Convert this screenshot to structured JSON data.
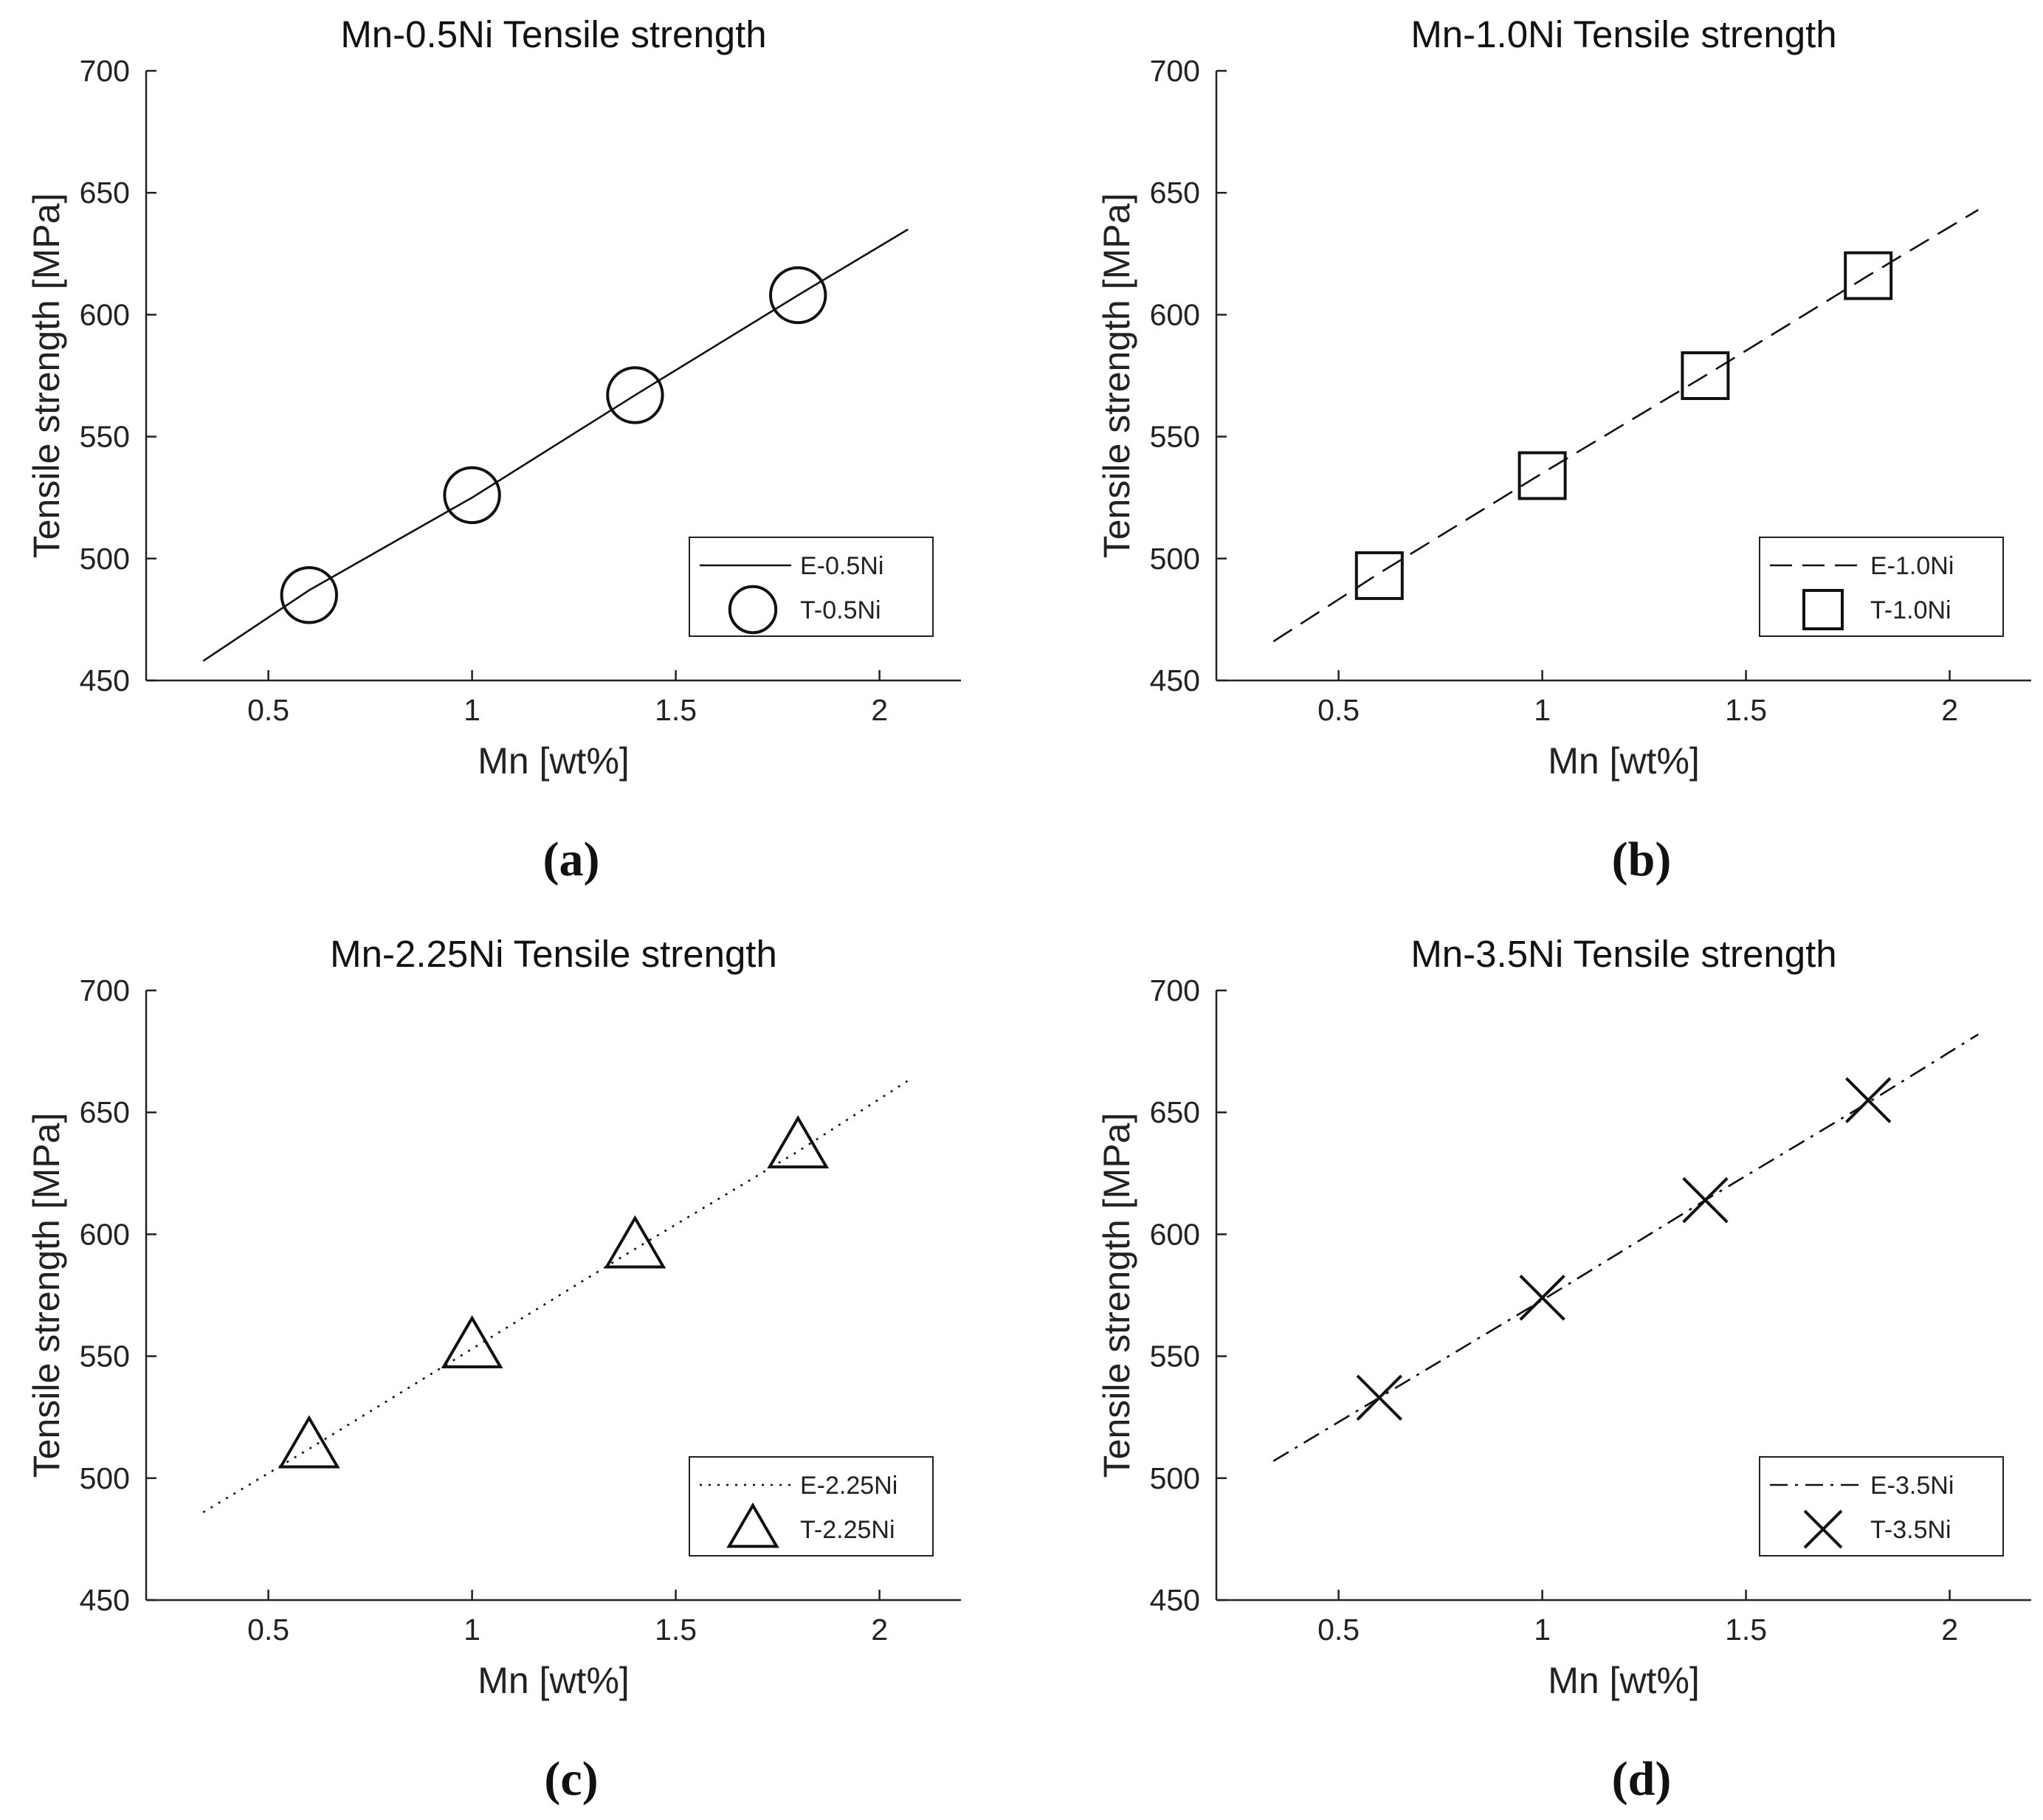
{
  "chart_data": [
    {
      "type": "line",
      "panel_label": "(a)",
      "title": "Mn-0.5Ni Tensile strength",
      "xlabel": "Mn [wt%]",
      "ylabel": "Tensile strength [MPa]",
      "xlim": [
        0.2,
        2.2
      ],
      "ylim": [
        450,
        700
      ],
      "xticks": [
        "0.5",
        "1",
        "1.5",
        "2"
      ],
      "yticks": [
        "450",
        "500",
        "550",
        "600",
        "650",
        "700"
      ],
      "legend_position": "bottom-right",
      "series": [
        {
          "name": "E-0.5Ni",
          "kind": "line",
          "linestyle": "solid",
          "x": [
            0.34,
            0.6,
            1.0,
            1.4,
            1.8,
            2.07
          ],
          "y": [
            458,
            487,
            525,
            567,
            608,
            635
          ]
        },
        {
          "name": "T-0.5Ni",
          "kind": "marker",
          "marker": "circle",
          "x": [
            0.6,
            1.0,
            1.4,
            1.8
          ],
          "y": [
            485,
            526,
            567,
            608
          ]
        }
      ]
    },
    {
      "type": "line",
      "panel_label": "(b)",
      "title": "Mn-1.0Ni Tensile strength",
      "xlabel": "Mn [wt%]",
      "ylabel": "Tensile strength [MPa]",
      "xlim": [
        0.2,
        2.2
      ],
      "ylim": [
        450,
        700
      ],
      "xticks": [
        "0.5",
        "1",
        "1.5",
        "2"
      ],
      "yticks": [
        "450",
        "500",
        "550",
        "600",
        "650",
        "700"
      ],
      "legend_position": "bottom-right",
      "series": [
        {
          "name": "E-1.0Ni",
          "kind": "line",
          "linestyle": "dashed",
          "x": [
            0.34,
            0.6,
            1.0,
            1.4,
            1.8,
            2.07
          ],
          "y": [
            466,
            494,
            535,
            575,
            616,
            643
          ]
        },
        {
          "name": "T-1.0Ni",
          "kind": "marker",
          "marker": "square",
          "x": [
            0.6,
            1.0,
            1.4,
            1.8
          ],
          "y": [
            493,
            534,
            575,
            616
          ]
        }
      ]
    },
    {
      "type": "line",
      "panel_label": "(c)",
      "title": "Mn-2.25Ni Tensile strength",
      "xlabel": "Mn [wt%]",
      "ylabel": "Tensile strength [MPa]",
      "xlim": [
        0.2,
        2.2
      ],
      "ylim": [
        450,
        700
      ],
      "xticks": [
        "0.5",
        "1",
        "1.5",
        "2"
      ],
      "yticks": [
        "450",
        "500",
        "550",
        "600",
        "650",
        "700"
      ],
      "legend_position": "bottom-right",
      "series": [
        {
          "name": "E-2.25Ni",
          "kind": "line",
          "linestyle": "dotted",
          "x": [
            0.34,
            0.6,
            1.0,
            1.4,
            1.8,
            2.07
          ],
          "y": [
            486,
            512,
            553,
            594,
            634,
            663
          ]
        },
        {
          "name": "T-2.25Ni",
          "kind": "marker",
          "marker": "triangle",
          "x": [
            0.6,
            1.0,
            1.4,
            1.8
          ],
          "y": [
            513,
            554,
            595,
            636
          ]
        }
      ]
    },
    {
      "type": "line",
      "panel_label": "(d)",
      "title": "Mn-3.5Ni Tensile strength",
      "xlabel": "Mn [wt%]",
      "ylabel": "Tensile strength [MPa]",
      "xlim": [
        0.2,
        2.2
      ],
      "ylim": [
        450,
        700
      ],
      "xticks": [
        "0.5",
        "1",
        "1.5",
        "2"
      ],
      "yticks": [
        "450",
        "500",
        "550",
        "600",
        "650",
        "700"
      ],
      "legend_position": "bottom-right",
      "series": [
        {
          "name": "E-3.5Ni",
          "kind": "line",
          "linestyle": "dashdot",
          "x": [
            0.34,
            0.6,
            1.0,
            1.4,
            1.8,
            2.07
          ],
          "y": [
            507,
            533,
            573,
            614,
            654,
            682
          ]
        },
        {
          "name": "T-3.5Ni",
          "kind": "marker",
          "marker": "x",
          "x": [
            0.6,
            1.0,
            1.4,
            1.8
          ],
          "y": [
            533,
            574,
            614,
            655
          ]
        }
      ]
    }
  ]
}
